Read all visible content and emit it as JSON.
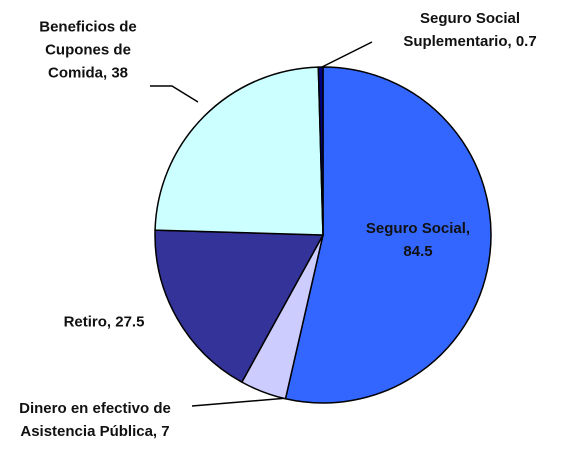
{
  "chart_data": {
    "type": "pie",
    "values": [
      84.5,
      7,
      27.5,
      38,
      0.7
    ],
    "value_labels": [
      "Seguro Social, 84.5",
      "Dinero en efectivo de Asistencia Pública, 7",
      "Retiro, 27.5",
      "Beneficios de Cupones de Comida, 38",
      "Seguro Social Suplementario, 0.7"
    ],
    "colors": [
      "#3366ff",
      "#ccccff",
      "#333399",
      "#ccffff",
      "#000080"
    ]
  }
}
